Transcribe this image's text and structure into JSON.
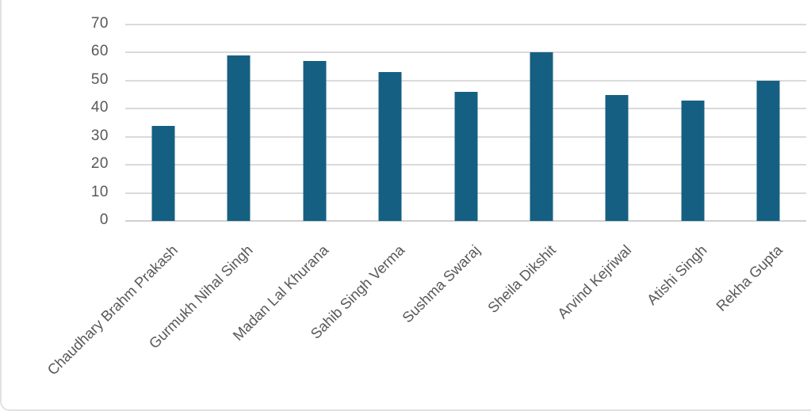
{
  "frame": {
    "background": "#ffffff",
    "border_color": "#e2e2e2"
  },
  "chart_data": {
    "type": "bar",
    "title": "",
    "xlabel": "",
    "ylabel": "",
    "categories": [
      "Chaudhary Brahm Prakash",
      "Gurmukh Nihal Singh",
      "Madan Lal Khurana",
      "Sahib Singh Verma",
      "Sushma Swaraj",
      "Sheila Dikshit",
      "Arvind Kejriwal",
      "Atishi Singh",
      "Rekha Gupta"
    ],
    "values": [
      34,
      59,
      57,
      53,
      46,
      60,
      45,
      43,
      50
    ],
    "ylim": [
      0,
      70
    ],
    "yticks": [
      0,
      10,
      20,
      30,
      40,
      50,
      60,
      70
    ],
    "grid": true,
    "legend": false,
    "x_label_rotation_deg": 45,
    "bar_color": "#156082",
    "gridline_color": "#dadada",
    "axis_line_color": "#d0d0d0",
    "tick_label_color": "#595959"
  }
}
